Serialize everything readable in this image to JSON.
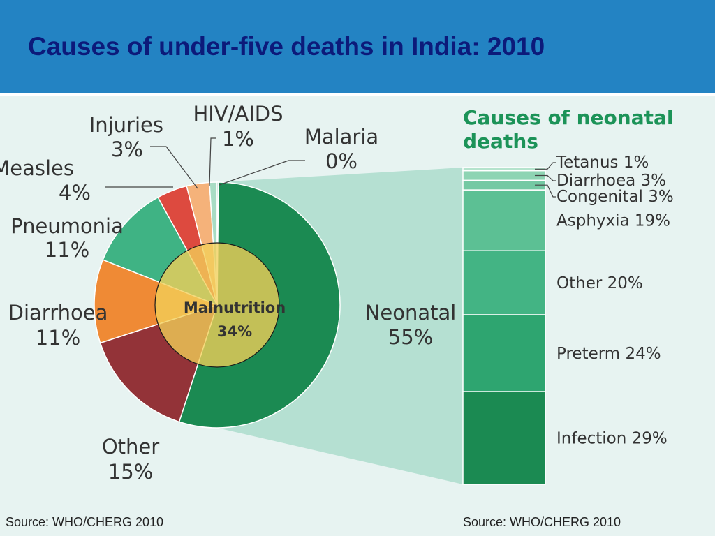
{
  "slide": {
    "title": "Causes of under-five deaths in India: 2010",
    "source_left": "Source: WHO/CHERG 2010",
    "source_right": "Source: WHO/CHERG 2010"
  },
  "colors": {
    "header_bg": "#2383c3",
    "title_text": "#0c1a7a",
    "panel_bg": "#e7f3f1",
    "connector_fill": "#b5e0d2",
    "neonatal_title": "#1c9358"
  },
  "chart_data": [
    {
      "type": "pie",
      "slices": [
        {
          "name": "Neonatal",
          "value": 55,
          "label": "Neonatal",
          "pct": "55%",
          "color": "#1b8a52"
        },
        {
          "name": "Other",
          "value": 15,
          "label": "Other",
          "pct": "15%",
          "color": "#933338"
        },
        {
          "name": "Diarrhoea",
          "value": 11,
          "label": "Diarrhoea",
          "pct": "11%",
          "color": "#ef8a35"
        },
        {
          "name": "Pneumonia",
          "value": 11,
          "label": "Pneumonia",
          "pct": "11%",
          "color": "#3fb384"
        },
        {
          "name": "Measles",
          "value": 4,
          "label": "Measles",
          "pct": "4%",
          "color": "#dd4a3f"
        },
        {
          "name": "Injuries",
          "value": 3,
          "label": "Injuries",
          "pct": "3%",
          "color": "#f5b27a"
        },
        {
          "name": "HIV/AIDS",
          "value": 1,
          "label": "HIV/AIDS",
          "pct": "1%",
          "color": "#a8dcc4"
        },
        {
          "name": "Malaria",
          "value": 0,
          "label": "Malaria",
          "pct": "0%",
          "color": "#4fb38a"
        }
      ],
      "overlay": {
        "label": "Malnutrition",
        "pct": "34%",
        "value": 34
      }
    },
    {
      "type": "bar",
      "title": "Causes of neonatal deaths",
      "stacked": true,
      "segments": [
        {
          "name": "Infection",
          "value": 29,
          "label": "Infection 29%",
          "color": "#1b8a52"
        },
        {
          "name": "Preterm",
          "value": 24,
          "label": "Preterm 24%",
          "color": "#2ea570"
        },
        {
          "name": "Other",
          "value": 20,
          "label": "Other 20%",
          "color": "#43b484"
        },
        {
          "name": "Asphyxia",
          "value": 19,
          "label": "Asphyxia 19%",
          "color": "#5cc094"
        },
        {
          "name": "Congenital",
          "value": 3,
          "label": "Congenital 3%",
          "color": "#74c9a3"
        },
        {
          "name": "Diarrhoea",
          "value": 3,
          "label": "Diarrhoea 3%",
          "color": "#8ed4b3"
        },
        {
          "name": "Tetanus",
          "value": 1,
          "label": "Tetanus 1%",
          "color": "#b5e3cd"
        }
      ]
    }
  ]
}
